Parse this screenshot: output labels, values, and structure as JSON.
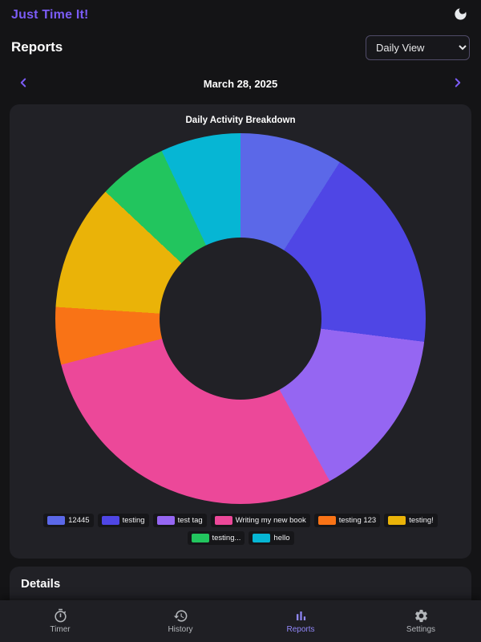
{
  "colors": {
    "accent": "#7b5cf6",
    "background": "#141416",
    "card": "#212126",
    "nav_active": "#9187f9",
    "nav_inactive": "#b3b6ba"
  },
  "app": {
    "title": "Just Time It!"
  },
  "header": {
    "title": "Reports",
    "view_selector": {
      "value": "Daily View",
      "options": [
        "Daily View"
      ]
    }
  },
  "date_nav": {
    "date": "March 28, 2025"
  },
  "chart_card": {
    "title": "Daily Activity Breakdown"
  },
  "chart_data": {
    "type": "pie",
    "subtype": "donut",
    "title": "Daily Activity Breakdown",
    "legend_position": "bottom",
    "hole_ratio": 0.44,
    "start_angle_deg": 0,
    "unit": "percent_estimated",
    "slices": [
      {
        "label": "12445",
        "value": 9,
        "color": "#5b68e8"
      },
      {
        "label": "testing",
        "value": 18,
        "color": "#4f46e5"
      },
      {
        "label": "test tag",
        "value": 15,
        "color": "#9566f2"
      },
      {
        "label": "Writing my new book",
        "value": 29,
        "color": "#ec4899"
      },
      {
        "label": "testing 123",
        "value": 5,
        "color": "#f97316"
      },
      {
        "label": "testing!",
        "value": 11,
        "color": "#eab308"
      },
      {
        "label": "testing...",
        "value": 6,
        "color": "#22c55e"
      },
      {
        "label": "hello",
        "value": 7,
        "color": "#06b6d4"
      }
    ],
    "legend_rows": [
      6,
      2
    ]
  },
  "details": {
    "title": "Details"
  },
  "bottom_nav": {
    "items": [
      {
        "label": "Timer",
        "icon": "timer-icon",
        "active": false
      },
      {
        "label": "History",
        "icon": "history-icon",
        "active": false
      },
      {
        "label": "Reports",
        "icon": "bar-chart-icon",
        "active": true
      },
      {
        "label": "Settings",
        "icon": "gear-icon",
        "active": false
      }
    ]
  },
  "icons": {
    "moon-icon": "crescent-moon",
    "chevron-left-icon": "chevron-left",
    "chevron-right-icon": "chevron-right",
    "timer-icon": "stopwatch",
    "history-icon": "clock-with-ccw-arrow",
    "bar-chart-icon": "bar-chart",
    "gear-icon": "gear"
  }
}
